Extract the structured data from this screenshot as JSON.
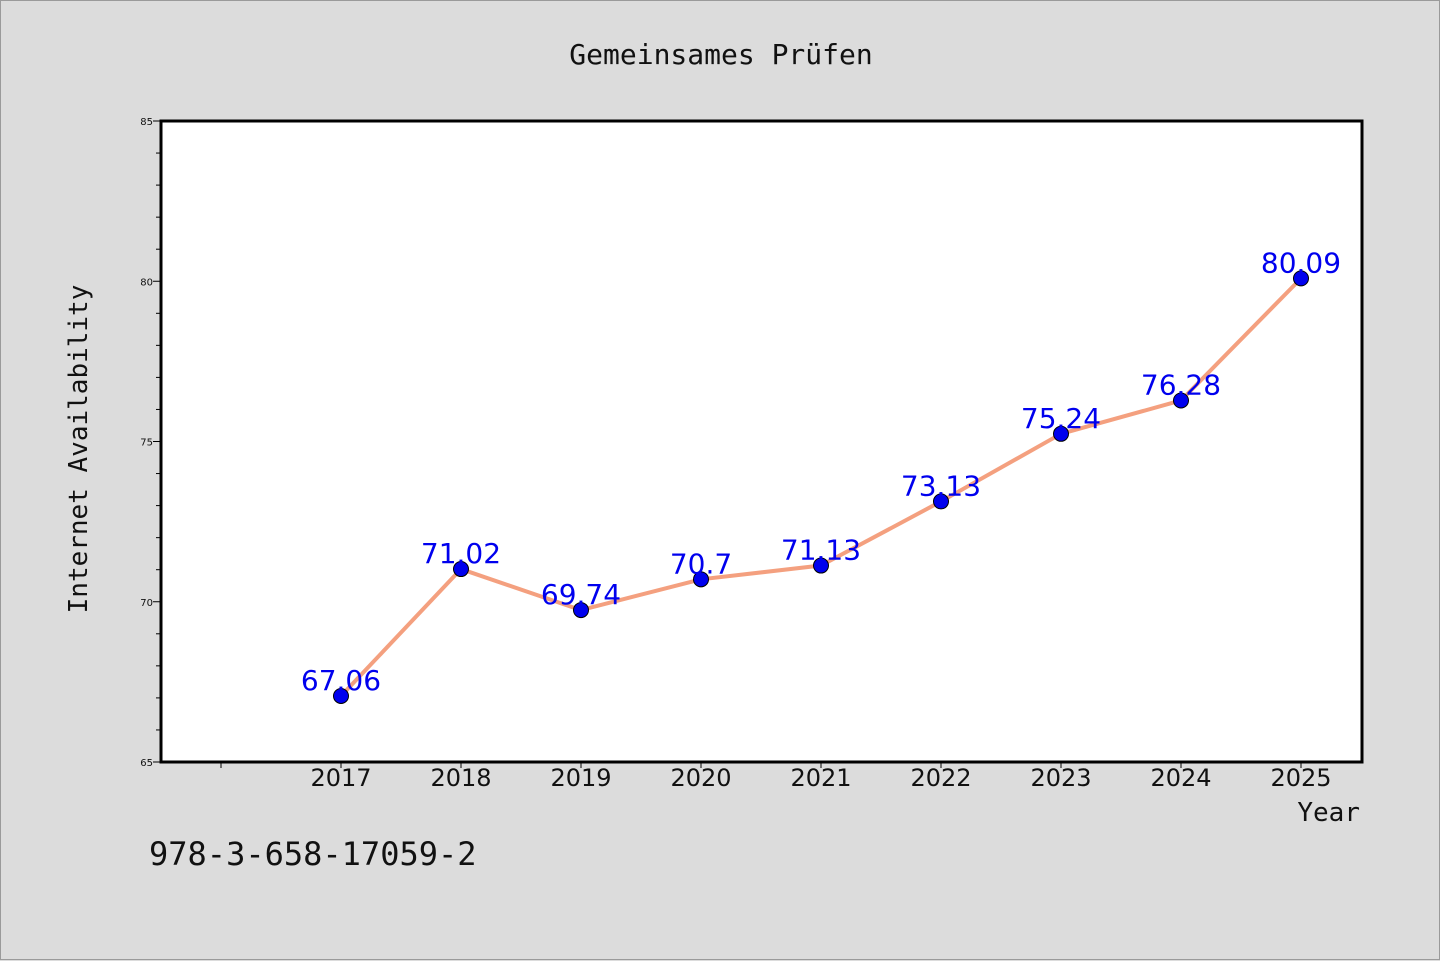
{
  "chart_data": {
    "type": "line",
    "title": "Gemeinsames Prüfen",
    "xlabel": "Year",
    "ylabel": "Internet Availability",
    "categories": [
      "2017",
      "2018",
      "2019",
      "2020",
      "2021",
      "2022",
      "2023",
      "2024",
      "2025"
    ],
    "series": [
      {
        "values": [
          67.06,
          71.02,
          69.74,
          70.7,
          71.13,
          73.13,
          75.24,
          76.28,
          80.09
        ],
        "data_labels": [
          "67.06",
          "71.02",
          "69.74",
          "70.7",
          "71.13",
          "73.13",
          "75.24",
          "76.28",
          "80.09"
        ],
        "line_color": "#f4a07f",
        "marker_color": "#0000ee",
        "label_color": "#0000ee"
      }
    ],
    "ylim": [
      65,
      85
    ],
    "y_ticks": [
      "65",
      "70",
      "75",
      "80",
      "85"
    ],
    "grid": false,
    "legend": "none"
  },
  "footer_text": "978-3-658-17059-2"
}
